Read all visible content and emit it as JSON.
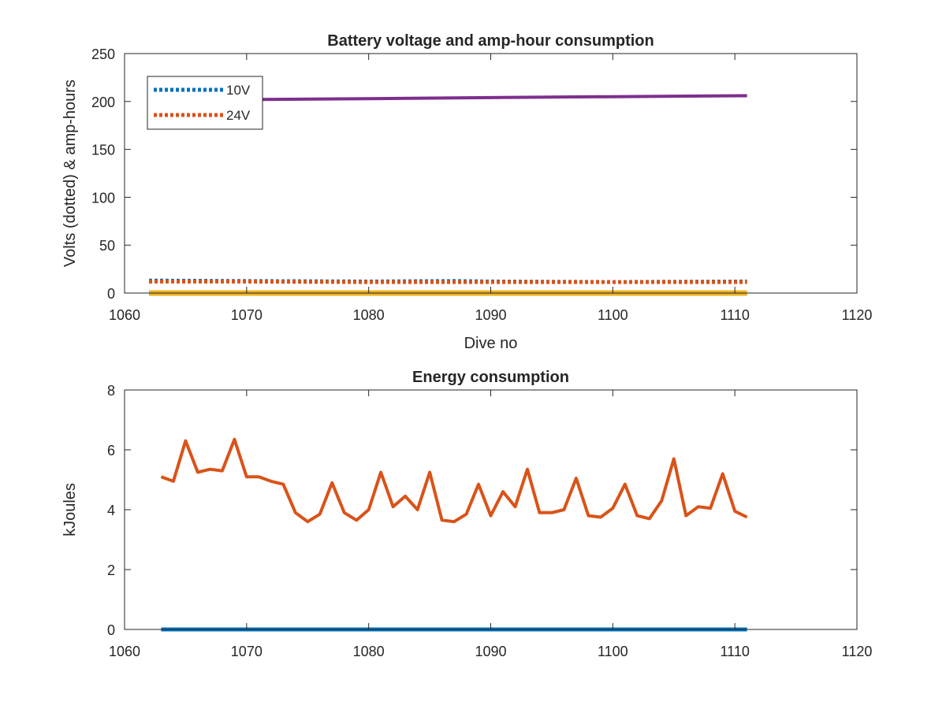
{
  "chart_data": [
    {
      "type": "line",
      "title": "Battery voltage and amp-hour consumption",
      "xlabel": "Dive no",
      "ylabel": "Volts (dotted) & amp-hours",
      "xlim": [
        1060,
        1120
      ],
      "ylim": [
        0,
        250
      ],
      "xticks": [
        1060,
        1070,
        1080,
        1090,
        1100,
        1110,
        1120
      ],
      "yticks": [
        0,
        50,
        100,
        150,
        200,
        250
      ],
      "grid": false,
      "legend": {
        "placement": "top-left",
        "entries": [
          "10V",
          "24V"
        ]
      },
      "series": [
        {
          "name": "10V",
          "color": "#0072BD",
          "style": "dotted",
          "x": [
            1062,
            1070,
            1080,
            1087,
            1090,
            1100,
            1111
          ],
          "y": [
            13,
            12.5,
            12,
            12.5,
            12,
            11.5,
            12
          ]
        },
        {
          "name": "24V",
          "color": "#D95319",
          "style": "dotted",
          "x": [
            1062,
            1070,
            1080,
            1090,
            1100,
            1111
          ],
          "y": [
            12,
            12,
            11.5,
            11.5,
            11.5,
            11.5
          ]
        },
        {
          "color": "#7E2F8E",
          "style": "solid",
          "x": [
            1062,
            1070,
            1080,
            1090,
            1100,
            1111
          ],
          "y": [
            201,
            202,
            203,
            204,
            205,
            206
          ]
        },
        {
          "color": "#EDB120",
          "style": "solid",
          "x": [
            1062,
            1111
          ],
          "y": [
            0,
            0
          ]
        }
      ]
    },
    {
      "type": "line",
      "title": "Energy consumption",
      "xlabel": "",
      "ylabel": "kJoules",
      "xlim": [
        1060,
        1120
      ],
      "ylim": [
        0,
        8
      ],
      "xticks": [
        1060,
        1070,
        1080,
        1090,
        1100,
        1110,
        1120
      ],
      "yticks": [
        0,
        2,
        4,
        6,
        8
      ],
      "grid": false,
      "series": [
        {
          "color": "#D95319",
          "style": "solid",
          "x": [
            1063,
            1064,
            1065,
            1066,
            1067,
            1068,
            1069,
            1070,
            1071,
            1072,
            1073,
            1074,
            1075,
            1076,
            1077,
            1078,
            1079,
            1080,
            1081,
            1082,
            1083,
            1084,
            1085,
            1086,
            1087,
            1088,
            1089,
            1090,
            1091,
            1092,
            1093,
            1094,
            1095,
            1096,
            1097,
            1098,
            1099,
            1100,
            1101,
            1102,
            1103,
            1104,
            1105,
            1106,
            1107,
            1108,
            1109,
            1110,
            1111
          ],
          "y": [
            5.1,
            4.95,
            6.3,
            5.25,
            5.35,
            5.3,
            6.35,
            5.1,
            5.1,
            4.95,
            4.85,
            3.9,
            3.6,
            3.85,
            4.9,
            3.9,
            3.65,
            4.0,
            5.25,
            4.1,
            4.45,
            4.0,
            5.25,
            3.65,
            3.6,
            3.85,
            4.85,
            3.8,
            4.6,
            4.1,
            5.35,
            3.9,
            3.9,
            4.0,
            5.05,
            3.8,
            3.75,
            4.05,
            4.85,
            3.8,
            3.7,
            4.3,
            5.7,
            3.8,
            4.1,
            4.05,
            5.2,
            3.95,
            3.75
          ]
        },
        {
          "color": "#0072BD",
          "style": "solid",
          "x": [
            1063,
            1111
          ],
          "y": [
            0,
            0
          ]
        }
      ]
    }
  ]
}
